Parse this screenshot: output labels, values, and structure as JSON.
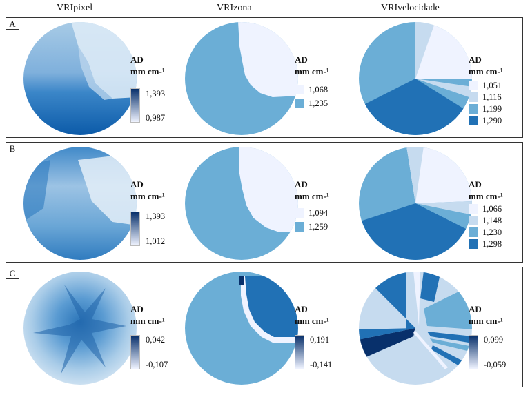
{
  "columns": [
    "VRIpixel",
    "VRIzona",
    "VRIvelocidade"
  ],
  "legend_title_1": "AD",
  "legend_title_2": "mm cm-¹",
  "colors": {
    "c1": "#eff3ff",
    "c2": "#c6dbef",
    "c3": "#6baed6",
    "c4": "#2171b5",
    "dark": "#08306b",
    "mid": "#4f8fc8"
  },
  "panels": [
    {
      "id": "A",
      "pixel": {
        "max": "1,393",
        "min": "0,987"
      },
      "zona": {
        "classes": [
          "1,068",
          "1,235"
        ]
      },
      "vel": {
        "classes": [
          "1,051",
          "1,116",
          "1,199",
          "1,290"
        ]
      }
    },
    {
      "id": "B",
      "pixel": {
        "max": "1,393",
        "min": "1,012"
      },
      "zona": {
        "classes": [
          "1,094",
          "1,259"
        ]
      },
      "vel": {
        "classes": [
          "1,066",
          "1,148",
          "1,230",
          "1,298"
        ]
      }
    },
    {
      "id": "C",
      "pixel": {
        "max": "0,042",
        "min": "-0,107"
      },
      "zona": {
        "max": "0,191",
        "min": "-0,141"
      },
      "vel": {
        "max": "0,099",
        "min": "-0,059"
      }
    }
  ]
}
